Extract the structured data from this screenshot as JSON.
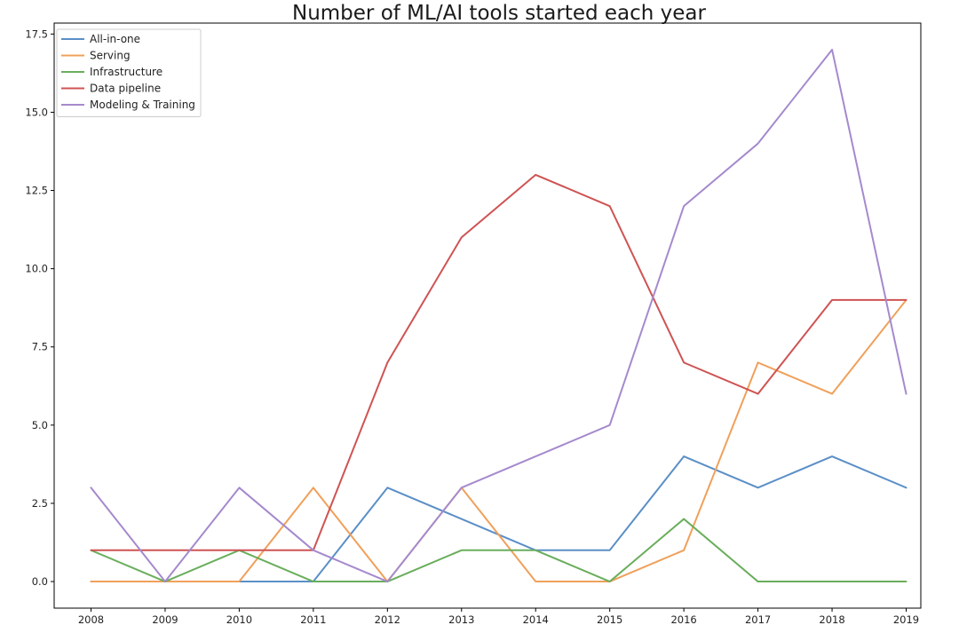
{
  "chart_data": {
    "type": "line",
    "title": "Number of ML/AI tools started each year",
    "xlabel": "",
    "ylabel": "",
    "x": [
      2008,
      2009,
      2010,
      2011,
      2012,
      2013,
      2014,
      2015,
      2016,
      2017,
      2018,
      2019
    ],
    "ylim": [
      -0.85,
      17.85
    ],
    "yticks": [
      0.0,
      2.5,
      5.0,
      7.5,
      10.0,
      12.5,
      15.0,
      17.5
    ],
    "ytick_labels": [
      "0.0",
      "2.5",
      "5.0",
      "7.5",
      "10.0",
      "12.5",
      "15.0",
      "17.5"
    ],
    "grid": false,
    "legend_position": "top-left",
    "series": [
      {
        "name": "All-in-one",
        "color": "#5b8fc7",
        "values": [
          0,
          0,
          0,
          0,
          3,
          2,
          1,
          1,
          4,
          3,
          4,
          3
        ]
      },
      {
        "name": "Serving",
        "color": "#f0a05a",
        "values": [
          0,
          0,
          0,
          3,
          0,
          3,
          0,
          0,
          1,
          7,
          6,
          9
        ]
      },
      {
        "name": "Infrastructure",
        "color": "#6aae5c",
        "values": [
          1,
          0,
          1,
          0,
          0,
          1,
          1,
          0,
          2,
          0,
          0,
          0
        ]
      },
      {
        "name": "Data pipeline",
        "color": "#cf5353",
        "values": [
          1,
          1,
          1,
          1,
          7,
          11,
          13,
          12,
          7,
          6,
          9,
          9
        ]
      },
      {
        "name": "Modeling & Training",
        "color": "#a58acd",
        "values": [
          3,
          0,
          3,
          1,
          0,
          3,
          4,
          5,
          12,
          14,
          17,
          6
        ]
      }
    ]
  }
}
